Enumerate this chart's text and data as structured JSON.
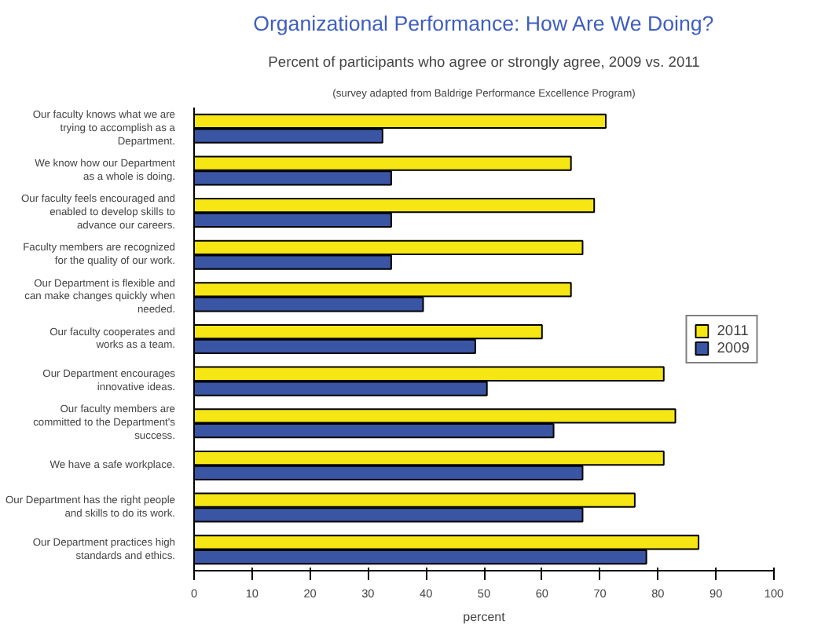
{
  "chart_data": {
    "type": "bar",
    "orientation": "horizontal",
    "title": "Organizational Performance: How Are We Doing?",
    "subtitle": "Percent of participants who agree or strongly agree, 2009 vs. 2011",
    "annotations": [
      "(survey adapted from Baldrige Performance Excellence Program)"
    ],
    "xlabel": "percent",
    "categories": [
      "Our faculty knows what we are\ntrying to accomplish as a\nDepartment.",
      "We know how our Department\nas a whole is doing.",
      "Our faculty feels encouraged and\nenabled to develop skills to\nadvance our careers.",
      "Faculty members are recognized\nfor the quality of our work.",
      "Our Department is flexible and\ncan make changes quickly when\nneeded.",
      "Our faculty cooperates and\nworks as a team.",
      "Our Department encourages\ninnovative ideas.",
      "Our faculty members are\ncommitted to the Department's\nsuccess.",
      "We have a safe workplace.",
      "Our Department has the right people\nand skills to do its work.",
      "Our Department practices high\nstandards and ethics."
    ],
    "series": [
      {
        "name": "2011",
        "color": "#f5e614",
        "values": [
          71,
          65,
          69,
          67,
          65,
          60,
          81,
          83,
          81,
          76,
          87
        ]
      },
      {
        "name": "2009",
        "color": "#3a55a4",
        "values": [
          32.5,
          34,
          34,
          34,
          39.5,
          48.5,
          50.5,
          62,
          67,
          67,
          78
        ]
      }
    ],
    "xlim": [
      0,
      100
    ],
    "xticks": [
      0,
      10,
      20,
      30,
      40,
      50,
      60,
      70,
      80,
      90,
      100
    ],
    "grid": false,
    "legend": "right"
  }
}
